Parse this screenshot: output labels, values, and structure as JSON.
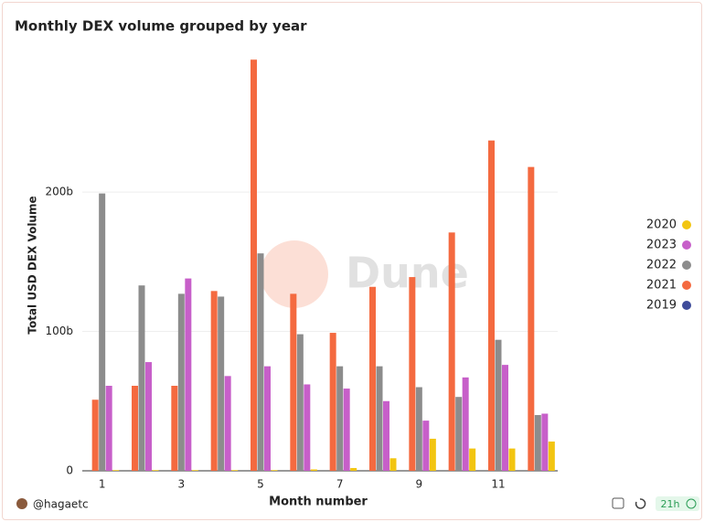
{
  "chart_data": {
    "type": "bar",
    "title": "Monthly DEX volume grouped by year",
    "x_label": "Month number",
    "y_label": "Total USD DEX Volume",
    "watermark": "Dune",
    "categories": [
      1,
      null,
      3,
      null,
      5,
      null,
      7,
      null,
      9,
      null,
      11,
      null
    ],
    "ylim": [
      0,
      305
    ],
    "yticks": [
      {
        "value": 0,
        "label": "0"
      },
      {
        "value": 100,
        "label": "100b"
      },
      {
        "value": 200,
        "label": "200b"
      }
    ],
    "grid": true,
    "legend": "right",
    "series": [
      {
        "name": "2020",
        "color": "#f2c511",
        "values": [
          0.5,
          0.5,
          0.5,
          0.5,
          0.5,
          1,
          2,
          9,
          23,
          16,
          16,
          21
        ]
      },
      {
        "name": "2023",
        "color": "#c75fc9",
        "values": [
          61,
          78,
          138,
          68,
          75,
          62,
          59,
          50,
          36,
          67,
          76,
          41
        ]
      },
      {
        "name": "2022",
        "color": "#8c8c8c",
        "values": [
          199,
          133,
          127,
          125,
          156,
          98,
          75,
          75,
          60,
          53,
          94,
          40
        ]
      },
      {
        "name": "2021",
        "color": "#f46a40",
        "values": [
          51,
          61,
          61,
          129,
          295,
          127,
          99,
          132,
          139,
          171,
          237,
          218
        ]
      },
      {
        "name": "2019",
        "color": "#3f4c9a",
        "values": [
          0,
          0,
          0,
          0,
          0,
          0,
          0,
          0,
          0,
          0,
          0,
          0
        ]
      }
    ]
  },
  "footer": {
    "author": "@hagaetc",
    "age": "21h"
  }
}
